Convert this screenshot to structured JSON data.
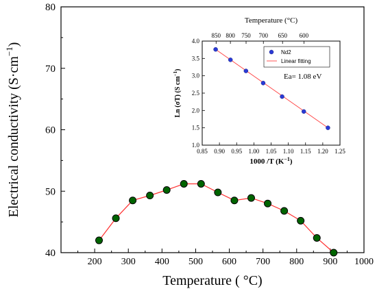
{
  "chart_data": [
    {
      "type": "line",
      "xlabel": "Temperature ( °C)",
      "ylabel": "Electrical conductivity (S·cm",
      "ylabel_sup": "−1",
      "ylabel_close": ")",
      "xlim": [
        100,
        1000
      ],
      "ylim": [
        40,
        80
      ],
      "xticks": [
        200,
        300,
        400,
        500,
        600,
        700,
        800,
        900,
        1000
      ],
      "yticks": [
        40,
        50,
        60,
        70,
        80
      ],
      "series": [
        {
          "marker_color": "#006400",
          "line_color": "#ff3030",
          "x": [
            213,
            263,
            313,
            364,
            414,
            465,
            516,
            566,
            615,
            665,
            714,
            763,
            812,
            860,
            910
          ],
          "y": [
            42.0,
            45.6,
            48.5,
            49.3,
            50.2,
            51.2,
            51.2,
            49.8,
            48.5,
            48.9,
            48.0,
            46.8,
            45.2,
            42.4,
            40.0
          ]
        }
      ]
    },
    {
      "type": "scatter",
      "inset": true,
      "xlabel": "1000 /T (K",
      "xlabel_sup": "−1",
      "xlabel_close": ")",
      "ylabel": "Ln (σT) (S cm",
      "ylabel_sup": "−1",
      "ylabel_close": ")",
      "top_axis_label": "Temperature (°C)",
      "top_ticks": [
        850,
        800,
        750,
        700,
        650,
        600
      ],
      "xlim": [
        0.85,
        1.25
      ],
      "ylim": [
        1.0,
        4.0
      ],
      "xticks": [
        0.85,
        0.9,
        0.95,
        1.0,
        1.05,
        1.1,
        1.15,
        1.2,
        1.25
      ],
      "yticks": [
        1.0,
        1.5,
        2.0,
        2.5,
        3.0,
        3.5,
        4.0
      ],
      "annotation": "Ea= 1.08 eV",
      "series": [
        {
          "name": "Nd2",
          "color": "#2a3ad6",
          "x": [
            0.889,
            0.932,
            0.977,
            1.027,
            1.082,
            1.145,
            1.215
          ],
          "y": [
            3.76,
            3.46,
            3.14,
            2.79,
            2.4,
            1.97,
            1.5
          ]
        },
        {
          "name": "Linear fitting",
          "color": "#ff4040",
          "type": "line",
          "x": [
            0.889,
            1.215
          ],
          "y": [
            3.76,
            1.5
          ]
        }
      ]
    }
  ]
}
